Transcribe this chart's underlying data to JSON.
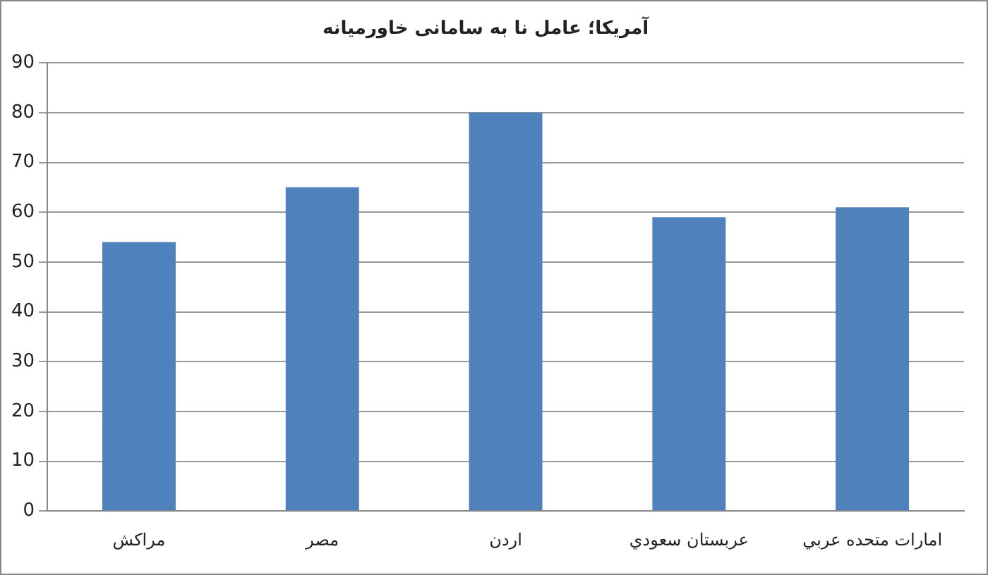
{
  "chart_data": {
    "type": "bar",
    "title": "آمریکا؛ عامل نا به سامانی خاورمیانه",
    "categories": [
      "مراکش",
      "مصر",
      "اردن",
      "عربستان سعودي",
      "امارات متحده عربي"
    ],
    "values": [
      54,
      65,
      80,
      59,
      61
    ],
    "color": "#4f81bd",
    "ylim": [
      0,
      90
    ],
    "yticks": [
      0,
      10,
      20,
      30,
      40,
      50,
      60,
      70,
      80,
      90
    ],
    "grid": "y",
    "legend": false
  }
}
